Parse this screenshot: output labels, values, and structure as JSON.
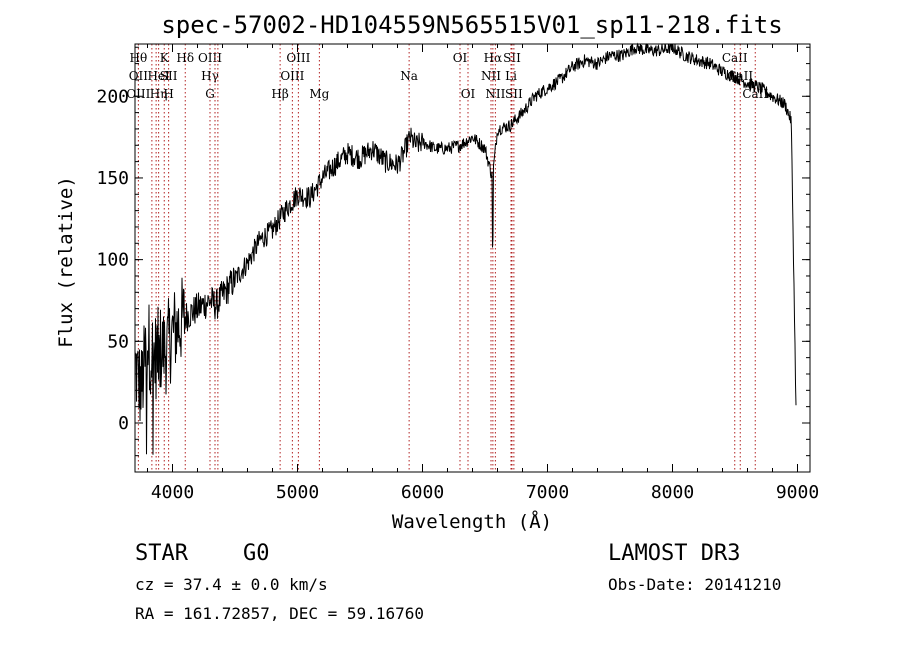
{
  "chart_data": {
    "type": "line",
    "title": "spec-57002-HD104559N565515V01_sp11-218.fits",
    "xlabel": "Wavelength (Å)",
    "ylabel": "Flux (relative)",
    "xlim": [
      3700,
      9100
    ],
    "ylim": [
      -30,
      232
    ],
    "xticks": [
      4000,
      5000,
      6000,
      7000,
      8000,
      9000
    ],
    "yticks": [
      0,
      50,
      100,
      150,
      200
    ],
    "grid": false,
    "series": [
      {
        "x": [
          3700,
          3750,
          3800,
          3850,
          3900,
          3950,
          4000,
          4050,
          4100,
          4200,
          4300,
          4350,
          4400,
          4500,
          4600,
          4700,
          4800,
          4900,
          5000,
          5100,
          5200,
          5300,
          5400,
          5500,
          5600,
          5700,
          5800,
          5850,
          5900,
          5950,
          6000,
          6100,
          6200,
          6300,
          6400,
          6500,
          6560,
          6600,
          6700,
          6800,
          6900,
          7000,
          7100,
          7200,
          7300,
          7400,
          7500,
          7600,
          7700,
          7800,
          7900,
          8000,
          8100,
          8200,
          8300,
          8400,
          8500,
          8600,
          8700,
          8800,
          8900,
          8950,
          8990
        ],
        "values": [
          35,
          20,
          50,
          40,
          45,
          45,
          55,
          60,
          65,
          70,
          75,
          72,
          78,
          88,
          98,
          112,
          118,
          130,
          140,
          138,
          150,
          158,
          165,
          162,
          168,
          160,
          158,
          165,
          175,
          170,
          172,
          168,
          168,
          170,
          175,
          168,
          150,
          180,
          182,
          190,
          200,
          205,
          210,
          218,
          222,
          220,
          225,
          225,
          230,
          228,
          228,
          230,
          225,
          222,
          220,
          215,
          212,
          208,
          205,
          200,
          195,
          185,
          0
        ]
      }
    ],
    "spectral_lines": [
      {
        "w": 3727,
        "top": "Hθ",
        "mid": "OII",
        "low": "OIII"
      },
      {
        "w": 3835,
        "top": "",
        "mid": "",
        "low": ""
      },
      {
        "w": 3869,
        "top": "",
        "mid": "",
        "low": ""
      },
      {
        "w": 3889,
        "top": "",
        "mid": "HeI",
        "low": "Hη"
      },
      {
        "w": 3934,
        "top": "K",
        "mid": "",
        "low": ""
      },
      {
        "w": 3969,
        "top": "",
        "mid": "SII",
        "low": "H"
      },
      {
        "w": 4102,
        "top": "Hδ",
        "mid": "",
        "low": ""
      },
      {
        "w": 4300,
        "top": "OIII",
        "mid": "Hγ",
        "low": "G"
      },
      {
        "w": 4340,
        "top": "",
        "mid": "",
        "low": ""
      },
      {
        "w": 4363,
        "top": "",
        "mid": "",
        "low": ""
      },
      {
        "w": 4861,
        "top": "",
        "mid": "",
        "low": "Hβ"
      },
      {
        "w": 4959,
        "top": "",
        "mid": "OIII",
        "low": ""
      },
      {
        "w": 5007,
        "top": "OIII",
        "mid": "",
        "low": ""
      },
      {
        "w": 5175,
        "top": "",
        "mid": "",
        "low": "Mg"
      },
      {
        "w": 5893,
        "top": "",
        "mid": "Na",
        "low": ""
      },
      {
        "w": 6300,
        "top": "OI",
        "mid": "",
        "low": ""
      },
      {
        "w": 6364,
        "top": "",
        "mid": "",
        "low": "OI"
      },
      {
        "w": 6548,
        "top": "",
        "mid": "NII",
        "low": ""
      },
      {
        "w": 6563,
        "top": "Hα",
        "mid": "",
        "low": ""
      },
      {
        "w": 6583,
        "top": "",
        "mid": "",
        "low": "NII"
      },
      {
        "w": 6708,
        "top": "",
        "mid": "Li",
        "low": ""
      },
      {
        "w": 6716,
        "top": "SII",
        "mid": "",
        "low": ""
      },
      {
        "w": 6731,
        "top": "",
        "mid": "",
        "low": "SII"
      },
      {
        "w": 8498,
        "top": "CaII",
        "mid": "",
        "low": ""
      },
      {
        "w": 8542,
        "top": "",
        "mid": "CaII",
        "low": ""
      },
      {
        "w": 8662,
        "top": "",
        "mid": "",
        "low": "CaII"
      }
    ]
  },
  "info": {
    "object_class": "STAR",
    "subclass": "G0",
    "survey": "LAMOST DR3",
    "cz": "cz = 37.4 ± 0.0 km/s",
    "obs_date": "Obs-Date: 20141210",
    "radec": "RA = 161.72857, DEC =  59.16760"
  }
}
